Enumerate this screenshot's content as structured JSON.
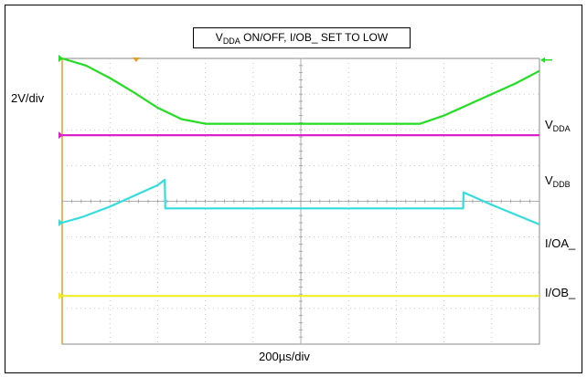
{
  "chart_data": {
    "type": "line",
    "title_parts": [
      "V",
      "DDA",
      " ON/OFF, I/OB_ SET TO LOW"
    ],
    "ylabel": "2V/div",
    "xlabel": "200µs/div",
    "grid": true,
    "divisions": {
      "x": 10,
      "y": 8
    },
    "x": [
      0,
      0.5,
      1.0,
      1.5,
      2.0,
      2.5,
      3.0,
      3.5,
      4.0,
      4.5,
      5.0,
      5.5,
      6.0,
      6.5,
      7.0,
      7.5,
      8.0,
      8.5,
      9.0,
      9.5,
      10.0
    ],
    "series": [
      {
        "label_parts": [
          "V",
          "DDA"
        ],
        "color": "#22dd22",
        "arrow": true,
        "x": [
          0,
          0.5,
          1.0,
          1.5,
          2.0,
          2.5,
          3.0,
          4.0,
          5.0,
          6.0,
          7.0,
          7.5,
          8.0,
          8.5,
          9.0,
          9.5,
          10.0
        ],
        "values": [
          0.0,
          0.2,
          0.55,
          0.95,
          1.38,
          1.7,
          1.83,
          1.83,
          1.83,
          1.83,
          1.83,
          1.83,
          1.6,
          1.3,
          1.0,
          0.7,
          0.35
        ]
      },
      {
        "label_parts": [
          "V",
          "DDB"
        ],
        "color": "#dd22cc",
        "x": [
          0,
          10.0
        ],
        "values": [
          2.15,
          2.15
        ]
      },
      {
        "label_parts": [
          "I/OA_",
          ""
        ],
        "color": "#33dddd",
        "x": [
          0,
          0.4,
          1.0,
          1.5,
          2.0,
          2.15,
          2.16,
          5.0,
          8.0,
          8.4,
          8.41,
          9.0,
          10.0
        ],
        "values": [
          4.6,
          4.45,
          4.15,
          3.85,
          3.55,
          3.4,
          4.2,
          4.2,
          4.2,
          4.2,
          3.75,
          4.1,
          4.65
        ]
      },
      {
        "label_parts": [
          "I/OB_",
          ""
        ],
        "color": "#eeee22",
        "x": [
          0,
          10.0
        ],
        "values": [
          6.65,
          6.65
        ]
      }
    ]
  }
}
